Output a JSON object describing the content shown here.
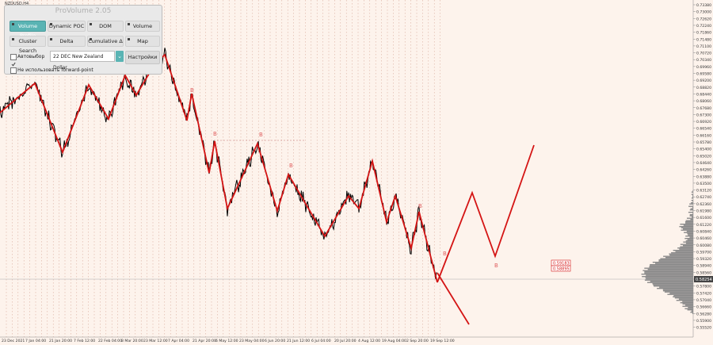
{
  "symbol": "NZDUSD,H4",
  "panel": {
    "title": "ProVolume 2.05",
    "buttons": [
      {
        "label": "Volume Profile",
        "active": true
      },
      {
        "label": "Dynamic POC",
        "active": false
      },
      {
        "label": "DOM",
        "active": false
      },
      {
        "label": "Volume",
        "active": false
      },
      {
        "label": "Cluster Search",
        "active": false
      },
      {
        "label": "Delta",
        "active": false
      },
      {
        "label": "Cumulative Δ",
        "active": false
      },
      {
        "label": "Map",
        "active": false
      }
    ],
    "autoselect_label": "Автовыбор",
    "autoselect_checked": true,
    "instrument": "22 DEC New Zealand Dollar",
    "settings_label": "Настройки",
    "forward_point_label": "Не использовать forward-point",
    "forward_point_checked": false
  },
  "price_axis": [
    "0.73380",
    "0.73000",
    "0.72620",
    "0.72240",
    "0.71860",
    "0.71480",
    "0.71100",
    "0.70720",
    "0.70340",
    "0.69960",
    "0.69580",
    "0.69200",
    "0.68820",
    "0.68440",
    "0.68060",
    "0.67680",
    "0.67300",
    "0.66920",
    "0.66540",
    "0.66160",
    "0.65780",
    "0.65400",
    "0.65020",
    "0.64640",
    "0.64260",
    "0.63880",
    "0.63500",
    "0.63120",
    "0.62740",
    "0.62360",
    "0.61980",
    "0.61600",
    "0.61220",
    "0.60840",
    "0.60460",
    "0.60080",
    "0.59700",
    "0.59320",
    "0.58940",
    "0.58560",
    "0.58180",
    "0.57800",
    "0.57420",
    "0.57040",
    "0.56660",
    "0.56280",
    "0.55900",
    "0.55520"
  ],
  "current_price": "0.58254",
  "level_labels": [
    "0.59183",
    "0.58895"
  ],
  "wave_labels": [
    "B",
    "B",
    "B",
    "B",
    "B",
    "B",
    "B"
  ],
  "time_axis": [
    "23 Dec 2021",
    "7 Jan 04:00",
    "21 Jan 20:00",
    "7 Feb 12:00",
    "22 Feb 04:00",
    "8 Mar 20:00",
    "23 Mar 12:00",
    "7 Apr 04:00",
    "21 Apr 20:00",
    "6 May 12:00",
    "23 May 04:00",
    "6 Jun 20:00",
    "21 Jun 12:00",
    "6 Jul 04:00",
    "20 Jul 20:00",
    "4 Aug 12:00",
    "19 Aug 04:00",
    "2 Sep 20:00",
    "19 Sep 12:00"
  ],
  "colors": {
    "background": "#fdf3ec",
    "price": "#000000",
    "zigzag": "#d41414",
    "grid": "#d4a090",
    "profile": "#8a8a8a"
  }
}
